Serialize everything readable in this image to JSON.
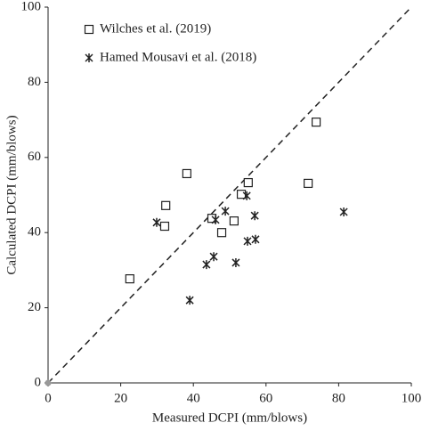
{
  "chart_data": {
    "type": "scatter",
    "xlabel": "Measured DCPI (mm/blows)",
    "ylabel": "Calculated DCPI (mm/blows)",
    "xlim": [
      0,
      100
    ],
    "ylim": [
      0,
      100
    ],
    "xticks": [
      0,
      20,
      40,
      60,
      80,
      100
    ],
    "yticks": [
      0,
      20,
      40,
      60,
      80,
      100
    ],
    "series": [
      {
        "name": "Wilches et al. (2019)",
        "color": "#222222",
        "marker": "square",
        "x": [
          22.5,
          32.4,
          32.1,
          38.2,
          45.1,
          47.8,
          51.2,
          53.2,
          55.1,
          71.6,
          73.8
        ],
        "values": [
          27.7,
          47.2,
          41.7,
          55.7,
          43.8,
          40.0,
          43.1,
          50.2,
          53.3,
          53.1,
          69.4
        ]
      },
      {
        "name": "Hamed Mousavi et al. (2018)",
        "color": "#222222",
        "marker": "star",
        "x": [
          29.9,
          39.0,
          43.6,
          45.6,
          46.1,
          48.8,
          51.7,
          54.7,
          54.9,
          56.9,
          57.1,
          81.4
        ],
        "values": [
          42.7,
          22.0,
          31.5,
          33.6,
          43.4,
          45.7,
          32.0,
          49.8,
          37.7,
          44.5,
          38.2,
          45.5
        ]
      }
    ]
  }
}
